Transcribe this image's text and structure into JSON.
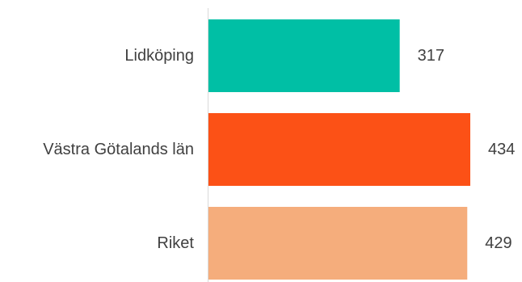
{
  "chart_data": {
    "type": "bar",
    "orientation": "horizontal",
    "categories": [
      "Lidköping",
      "Västra Götalands län",
      "Riket"
    ],
    "values": [
      317,
      434,
      429
    ],
    "colors": [
      "#00BFA5",
      "#FC5116",
      "#F5AD7C"
    ],
    "title": "",
    "xlabel": "",
    "ylabel": "",
    "xlim": [
      0,
      434
    ],
    "grid": false,
    "legend": "none"
  }
}
